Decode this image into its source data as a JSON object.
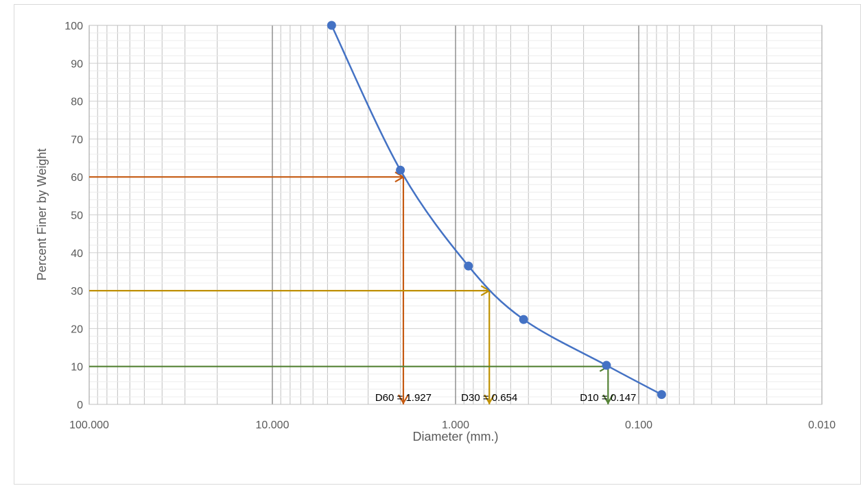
{
  "chart_data": {
    "type": "scatter",
    "title": "",
    "xlabel": "Diameter (mm.)",
    "ylabel": "Percent Finer by Weight",
    "x_scale": "log",
    "x_reversed": true,
    "xlim": [
      100,
      0.01
    ],
    "ylim": [
      0,
      100
    ],
    "x_tick_labels": [
      "100.000",
      "10.000",
      "1.000",
      "0.100",
      "0.010"
    ],
    "x_tick_values": [
      100,
      10,
      1,
      0.1,
      0.01
    ],
    "y_tick_values": [
      0,
      10,
      20,
      30,
      40,
      50,
      60,
      70,
      80,
      90,
      100
    ],
    "grid": true,
    "legend": "none",
    "series": [
      {
        "color": "#4472c4",
        "x": [
          4.75,
          2.0,
          0.85,
          0.425,
          0.15,
          0.075
        ],
        "y": [
          100,
          61.8,
          36.5,
          22.4,
          10.3,
          2.6
        ]
      }
    ],
    "annotations": [
      {
        "label": "D60 = 1.927",
        "percent": 60,
        "diameter": 1.927,
        "color": "#c55a11"
      },
      {
        "label": "D30 = 0.654",
        "percent": 30,
        "diameter": 0.654,
        "color": "#bf9000"
      },
      {
        "label": "D10 = 0.147",
        "percent": 10,
        "diameter": 0.147,
        "color": "#548235"
      }
    ]
  }
}
